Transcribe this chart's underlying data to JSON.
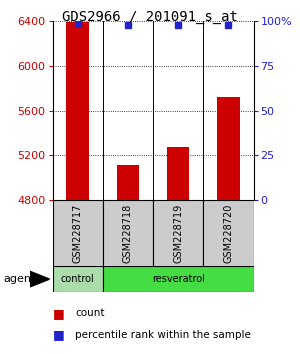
{
  "title": "GDS2966 / 201091_s_at",
  "samples": [
    "GSM228717",
    "GSM228718",
    "GSM228719",
    "GSM228720"
  ],
  "bar_values": [
    6395,
    5115,
    5270,
    5720
  ],
  "bar_base": 4800,
  "percentile_values": [
    99,
    98,
    98,
    98
  ],
  "bar_color": "#cc0000",
  "percentile_color": "#2222cc",
  "ylim_left": [
    4800,
    6400
  ],
  "ylim_right": [
    0,
    100
  ],
  "yticks_left": [
    4800,
    5200,
    5600,
    6000,
    6400
  ],
  "yticks_right": [
    0,
    25,
    50,
    75,
    100
  ],
  "ytick_labels_right": [
    "0",
    "25",
    "50",
    "75",
    "100%"
  ],
  "control_color": "#aaddaa",
  "resveratrol_color": "#44dd44",
  "sample_box_color": "#cccccc",
  "title_fontsize": 10,
  "tick_fontsize": 8,
  "sample_fontsize": 7,
  "legend_fontsize": 7.5,
  "agent_fontsize": 8
}
